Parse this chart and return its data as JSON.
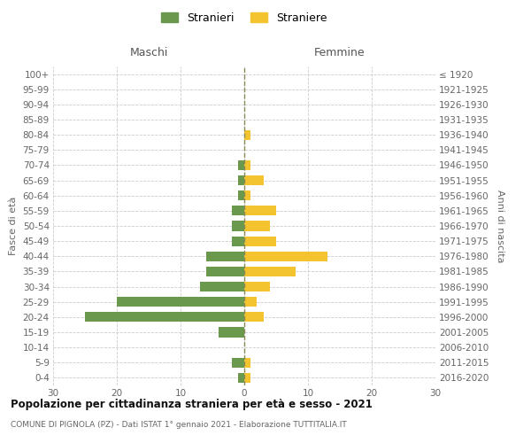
{
  "age_groups": [
    "0-4",
    "5-9",
    "10-14",
    "15-19",
    "20-24",
    "25-29",
    "30-34",
    "35-39",
    "40-44",
    "45-49",
    "50-54",
    "55-59",
    "60-64",
    "65-69",
    "70-74",
    "75-79",
    "80-84",
    "85-89",
    "90-94",
    "95-99",
    "100+"
  ],
  "birth_years": [
    "2016-2020",
    "2011-2015",
    "2006-2010",
    "2001-2005",
    "1996-2000",
    "1991-1995",
    "1986-1990",
    "1981-1985",
    "1976-1980",
    "1971-1975",
    "1966-1970",
    "1961-1965",
    "1956-1960",
    "1951-1955",
    "1946-1950",
    "1941-1945",
    "1936-1940",
    "1931-1935",
    "1926-1930",
    "1921-1925",
    "≤ 1920"
  ],
  "males": [
    1,
    2,
    0,
    4,
    25,
    20,
    7,
    6,
    6,
    2,
    2,
    2,
    1,
    1,
    1,
    0,
    0,
    0,
    0,
    0,
    0
  ],
  "females": [
    1,
    1,
    0,
    0,
    3,
    2,
    4,
    8,
    13,
    5,
    4,
    5,
    1,
    3,
    1,
    0,
    1,
    0,
    0,
    0,
    0
  ],
  "male_color": "#6a994e",
  "female_color": "#f4c430",
  "title": "Popolazione per cittadinanza straniera per età e sesso - 2021",
  "subtitle": "COMUNE DI PIGNOLA (PZ) - Dati ISTAT 1° gennaio 2021 - Elaborazione TUTTITALIA.IT",
  "ylabel_left": "Fasce di età",
  "ylabel_right": "Anni di nascita",
  "legend_male": "Stranieri",
  "legend_female": "Straniere",
  "xlim": 30,
  "background_color": "#ffffff",
  "grid_color": "#cccccc",
  "male_header": "Maschi",
  "female_header": "Femmine",
  "bar_height": 0.65
}
